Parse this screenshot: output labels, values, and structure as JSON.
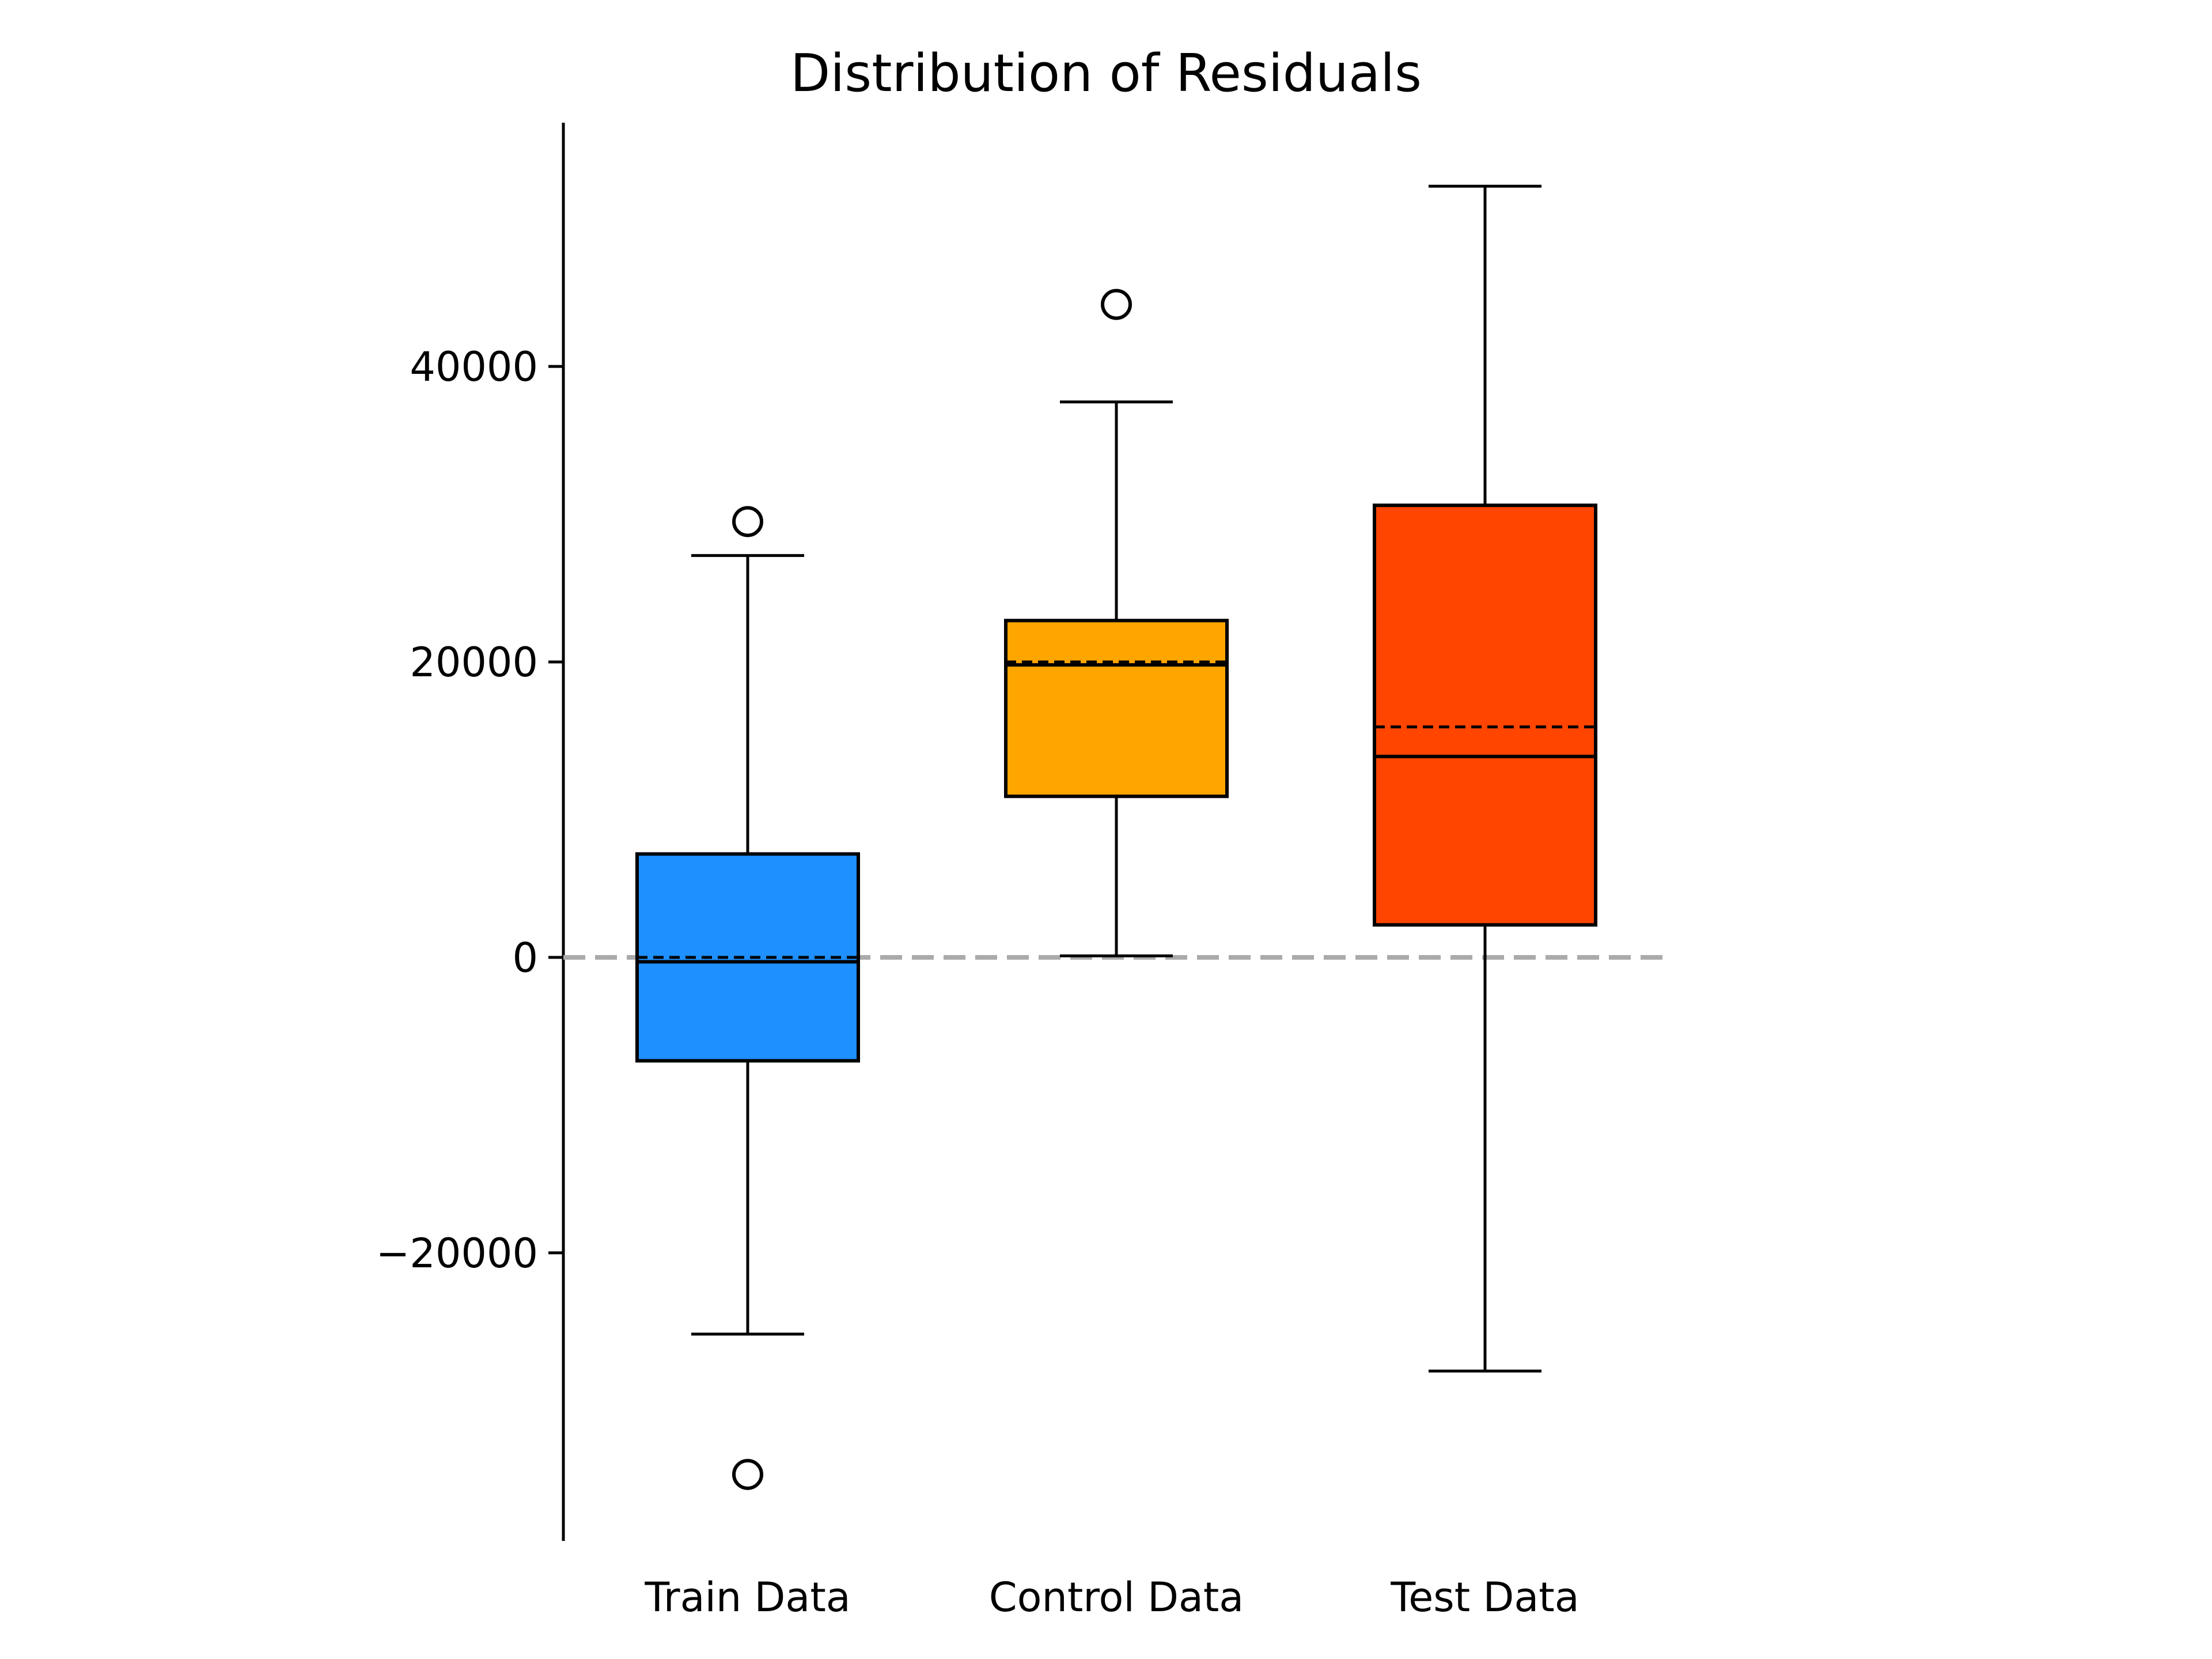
{
  "chart_data": {
    "type": "boxplot",
    "title": "Distribution of Residuals",
    "xlabel": "",
    "ylabel": "",
    "categories": [
      "Train Data",
      "Control Data",
      "Test Data"
    ],
    "ylim": [
      -39500,
      56500
    ],
    "yticks": [
      -20000,
      0,
      20000,
      40000
    ],
    "ytick_labels": [
      "−20000",
      "0",
      "20000",
      "40000"
    ],
    "grid": false,
    "reference_line": {
      "y": 0,
      "style": "dashed",
      "color": "#aaaaaa"
    },
    "boxes": [
      {
        "name": "Train Data",
        "color": "#1e90ff",
        "whisker_low": -25500,
        "q1": -7000,
        "median": -300,
        "mean": 0,
        "q3": 7000,
        "whisker_high": 27200,
        "outliers": [
          29500,
          -35000
        ]
      },
      {
        "name": "Control Data",
        "color": "#ffa500",
        "whisker_low": 100,
        "q1": 10900,
        "median": 19800,
        "mean": 20000,
        "q3": 22800,
        "whisker_high": 37600,
        "outliers": [
          44200
        ]
      },
      {
        "name": "Test Data",
        "color": "#ff4500",
        "whisker_low": -28000,
        "q1": 2200,
        "median": 13600,
        "mean": 15600,
        "q3": 30600,
        "whisker_high": 52200,
        "outliers": []
      }
    ]
  }
}
